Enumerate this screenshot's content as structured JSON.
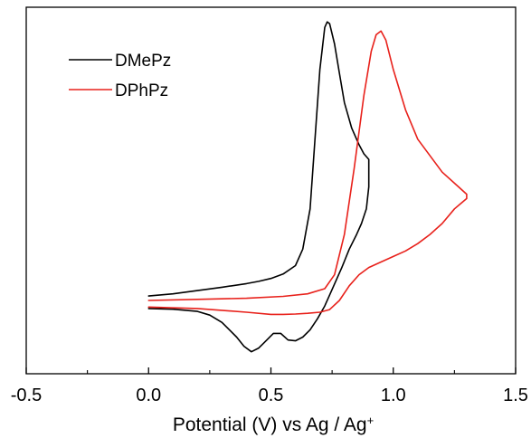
{
  "chart_data": {
    "type": "line",
    "title": "",
    "xlabel": "Potential (V) vs Ag / Ag",
    "xlabel_superscript": "+",
    "ylabel": "",
    "xlim": [
      -0.5,
      1.5
    ],
    "x_ticks": [
      -0.5,
      0.0,
      0.5,
      1.0,
      1.5
    ],
    "x_tick_labels": [
      "-0.5",
      "0.0",
      "0.5",
      "1.0",
      "1.5"
    ],
    "y_axis_labels_shown": false,
    "ylim": [
      0,
      1
    ],
    "grid": false,
    "legend_position": "top-left",
    "series": [
      {
        "name": "DMePz",
        "color": "#000000",
        "x": [
          0.0,
          0.1,
          0.2,
          0.3,
          0.4,
          0.45,
          0.5,
          0.55,
          0.6,
          0.63,
          0.66,
          0.68,
          0.7,
          0.72,
          0.73,
          0.74,
          0.76,
          0.78,
          0.8,
          0.83,
          0.86,
          0.88,
          0.9,
          0.9,
          0.89,
          0.87,
          0.85,
          0.82,
          0.79,
          0.75,
          0.72,
          0.69,
          0.66,
          0.63,
          0.6,
          0.57,
          0.54,
          0.51,
          0.48,
          0.45,
          0.42,
          0.39,
          0.36,
          0.3,
          0.25,
          0.2,
          0.1,
          0.0
        ],
        "y": [
          0.212,
          0.218,
          0.227,
          0.236,
          0.246,
          0.252,
          0.26,
          0.272,
          0.295,
          0.34,
          0.45,
          0.64,
          0.83,
          0.945,
          0.96,
          0.955,
          0.9,
          0.82,
          0.74,
          0.67,
          0.625,
          0.6,
          0.585,
          0.51,
          0.45,
          0.41,
          0.38,
          0.34,
          0.29,
          0.23,
          0.185,
          0.15,
          0.12,
          0.1,
          0.09,
          0.092,
          0.11,
          0.11,
          0.09,
          0.07,
          0.06,
          0.075,
          0.1,
          0.14,
          0.16,
          0.17,
          0.176,
          0.178
        ]
      },
      {
        "name": "DPhPz",
        "color": "#e8211b",
        "x": [
          0.0,
          0.2,
          0.4,
          0.55,
          0.65,
          0.72,
          0.76,
          0.8,
          0.84,
          0.88,
          0.91,
          0.93,
          0.95,
          0.97,
          1.0,
          1.05,
          1.1,
          1.2,
          1.3,
          1.3,
          1.25,
          1.2,
          1.15,
          1.1,
          1.05,
          1.0,
          0.95,
          0.9,
          0.86,
          0.82,
          0.78,
          0.74,
          0.7,
          0.65,
          0.6,
          0.55,
          0.5,
          0.4,
          0.2,
          0.0
        ],
        "y": [
          0.2,
          0.203,
          0.206,
          0.211,
          0.218,
          0.232,
          0.27,
          0.38,
          0.56,
          0.76,
          0.88,
          0.925,
          0.935,
          0.91,
          0.83,
          0.72,
          0.64,
          0.55,
          0.49,
          0.478,
          0.45,
          0.41,
          0.38,
          0.355,
          0.335,
          0.32,
          0.305,
          0.29,
          0.27,
          0.24,
          0.2,
          0.175,
          0.168,
          0.165,
          0.163,
          0.162,
          0.162,
          0.168,
          0.178,
          0.182
        ]
      }
    ]
  }
}
